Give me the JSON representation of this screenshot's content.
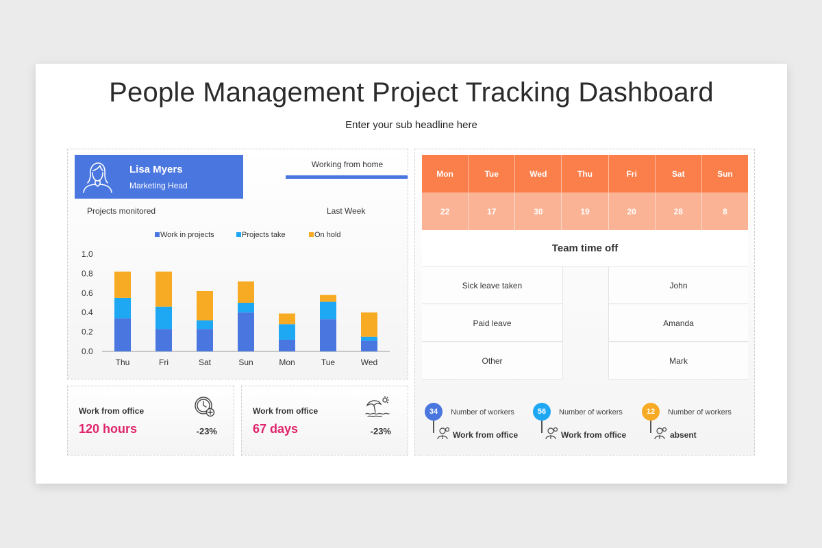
{
  "title": "People Management Project Tracking Dashboard",
  "subtitle": "Enter your sub headline here",
  "profile": {
    "name": "Lisa Myers",
    "role": "Marketing Head"
  },
  "working_from_home": "Working from home",
  "projects_monitored": "Projects monitored",
  "last_week": "Last Week",
  "colors": {
    "blue": "#4a76e0",
    "cyan": "#1ea7f3",
    "orange": "#f7ab24",
    "pink": "#e0246b",
    "salmon": "#fa7f4b",
    "peach": "#fbb395"
  },
  "chart_data": {
    "type": "bar",
    "stacked": true,
    "categories": [
      "Thu",
      "Fri",
      "Sat",
      "Sun",
      "Mon",
      "Tue",
      "Wed"
    ],
    "series": [
      {
        "name": "Work in projects",
        "color": "#4a76e0",
        "values": [
          0.34,
          0.23,
          0.23,
          0.4,
          0.12,
          0.33,
          0.11
        ]
      },
      {
        "name": "Projects take",
        "color": "#1ea7f3",
        "values": [
          0.21,
          0.23,
          0.09,
          0.1,
          0.16,
          0.18,
          0.04
        ]
      },
      {
        "name": "On hold",
        "color": "#f7ab24",
        "values": [
          0.27,
          0.36,
          0.3,
          0.22,
          0.11,
          0.07,
          0.25
        ]
      }
    ],
    "ylim": [
      0,
      1.0
    ],
    "yticks": [
      "0.0",
      "0.2",
      "0.4",
      "0.6",
      "0.8",
      "1.0"
    ],
    "legend": "top"
  },
  "cards": [
    {
      "label": "Work from office",
      "value": "120 hours",
      "change": "-23%",
      "icon": "clock-add-icon"
    },
    {
      "label": "Work from office",
      "value": "67 days",
      "change": "-23%",
      "icon": "beach-umbrella-icon"
    }
  ],
  "calendar": {
    "days": [
      "Mon",
      "Tue",
      "Wed",
      "Thu",
      "Fri",
      "Sat",
      "Sun"
    ],
    "values": [
      "22",
      "17",
      "30",
      "19",
      "20",
      "28",
      "8"
    ]
  },
  "team_time_off": {
    "title": "Team time off",
    "rows": [
      {
        "type": "Sick leave taken",
        "name": "John"
      },
      {
        "type": "Paid leave",
        "name": "Amanda"
      },
      {
        "type": "Other",
        "name": "Mark"
      }
    ]
  },
  "stats": [
    {
      "count": "34",
      "label": "Number of workers",
      "sub": "Work from office",
      "color": "#4a76e0"
    },
    {
      "count": "56",
      "label": "Number of workers",
      "sub": "Work from office",
      "color": "#1ea7f3"
    },
    {
      "count": "12",
      "label": "Number of workers",
      "sub": "absent",
      "color": "#f7ab24"
    }
  ]
}
